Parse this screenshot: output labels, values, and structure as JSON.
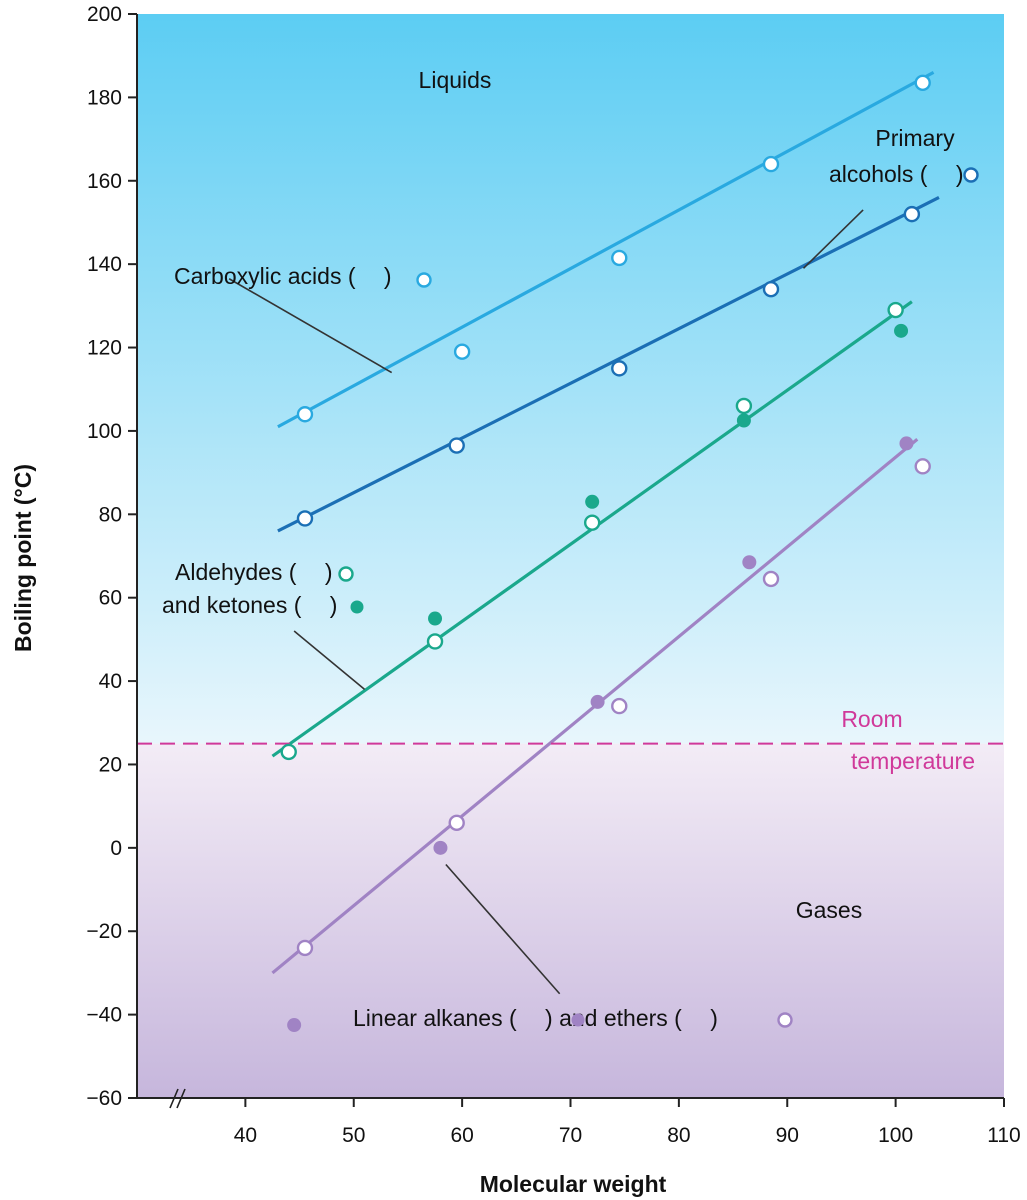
{
  "chart_data": {
    "type": "scatter",
    "title": "",
    "xlabel": "Molecular weight",
    "ylabel": "Boiling point (°C)",
    "xlim": [
      30,
      110
    ],
    "ylim": [
      -60,
      200
    ],
    "x_ticks": [
      "40",
      "50",
      "60",
      "70",
      "80",
      "90",
      "100",
      "110"
    ],
    "y_ticks": [
      "200",
      "180",
      "160",
      "140",
      "120",
      "100",
      "80",
      "60",
      "40",
      "20",
      "0",
      "−20",
      "−40",
      "−60"
    ],
    "x_axis_break": true,
    "region_labels": {
      "liquids": "Liquids",
      "gases": "Gases"
    },
    "room_temperature": {
      "value": 25,
      "label_line1": "Room",
      "label_line2": "temperature",
      "color": "#d0399a"
    },
    "background": {
      "top": "#5ccdf3",
      "mid": "#e8f6fc",
      "bottom": "#c6b6dc",
      "below_room": "#f3ecf6"
    },
    "series": [
      {
        "group": "carboxylic",
        "marker": "open",
        "color": "#29a9e0",
        "points": [
          [
            45.5,
            104
          ],
          [
            60,
            119
          ],
          [
            74.5,
            141.5
          ],
          [
            88.5,
            164
          ],
          [
            102.5,
            183.5
          ]
        ],
        "fit": [
          [
            43,
            101
          ],
          [
            103.5,
            186
          ]
        ]
      },
      {
        "group": "alcohols",
        "marker": "open",
        "color": "#1b6fb5",
        "points": [
          [
            45.5,
            79
          ],
          [
            59.5,
            96.5
          ],
          [
            74.5,
            115
          ],
          [
            88.5,
            134
          ],
          [
            101.5,
            152
          ]
        ],
        "fit": [
          [
            43,
            76
          ],
          [
            104,
            156
          ]
        ]
      },
      {
        "group": "aldehydes",
        "marker": "open",
        "color": "#1aa88c",
        "points": [
          [
            44,
            23
          ],
          [
            57.5,
            49.5
          ],
          [
            72,
            78
          ],
          [
            86,
            106
          ],
          [
            100,
            129
          ]
        ],
        "fit": [
          [
            42.5,
            22
          ],
          [
            101.5,
            131
          ]
        ]
      },
      {
        "group": "ketones",
        "marker": "filled",
        "color": "#1aa88c",
        "points": [
          [
            57.5,
            55
          ],
          [
            72,
            83
          ],
          [
            86,
            102.5
          ],
          [
            100.5,
            124
          ]
        ]
      },
      {
        "group": "alkanes",
        "marker": "filled",
        "color": "#a083c4",
        "points": [
          [
            44.5,
            -42.5
          ],
          [
            58,
            0
          ],
          [
            72.5,
            35
          ],
          [
            86.5,
            68.5
          ],
          [
            101,
            97
          ]
        ],
        "fit": [
          [
            42.5,
            -30
          ],
          [
            102,
            98
          ]
        ]
      },
      {
        "group": "ethers",
        "marker": "open",
        "color": "#a083c4",
        "points": [
          [
            45.5,
            -24
          ],
          [
            59.5,
            6
          ],
          [
            74.5,
            34
          ],
          [
            88.5,
            64.5
          ],
          [
            102.5,
            91.5
          ]
        ]
      }
    ],
    "annotations": [
      {
        "id": "carboxylic",
        "lines": [
          "Carboxylic acids ( ",
          ")"
        ],
        "markers": [
          {
            "style": "open",
            "color": "#29a9e0"
          }
        ],
        "leader": [
          [
            38.5,
            136.5
          ],
          [
            53.5,
            114
          ]
        ]
      },
      {
        "id": "alcohols",
        "lines": [
          "Primary",
          "alcohols ( ",
          ")"
        ],
        "markers": [
          {
            "style": "open",
            "color": "#1b6fb5"
          }
        ],
        "leader": [
          [
            97,
            153
          ],
          [
            91.5,
            139
          ]
        ]
      },
      {
        "id": "aldehydes",
        "lines": [
          "Aldehydes ( ",
          ")",
          "and ketones ( ",
          ")"
        ],
        "markers": [
          {
            "style": "open",
            "color": "#1aa88c"
          },
          {
            "style": "filled",
            "color": "#1aa88c"
          }
        ],
        "leader": [
          [
            44.5,
            52
          ],
          [
            51,
            38
          ]
        ]
      },
      {
        "id": "alkanes",
        "lines": [
          "Linear alkanes ( ",
          ") and ethers ( ",
          ")"
        ],
        "markers": [
          {
            "style": "filled",
            "color": "#a083c4"
          },
          {
            "style": "open",
            "color": "#a083c4"
          }
        ],
        "leader": [
          [
            69,
            -35
          ],
          [
            58.5,
            -4
          ]
        ]
      }
    ]
  }
}
